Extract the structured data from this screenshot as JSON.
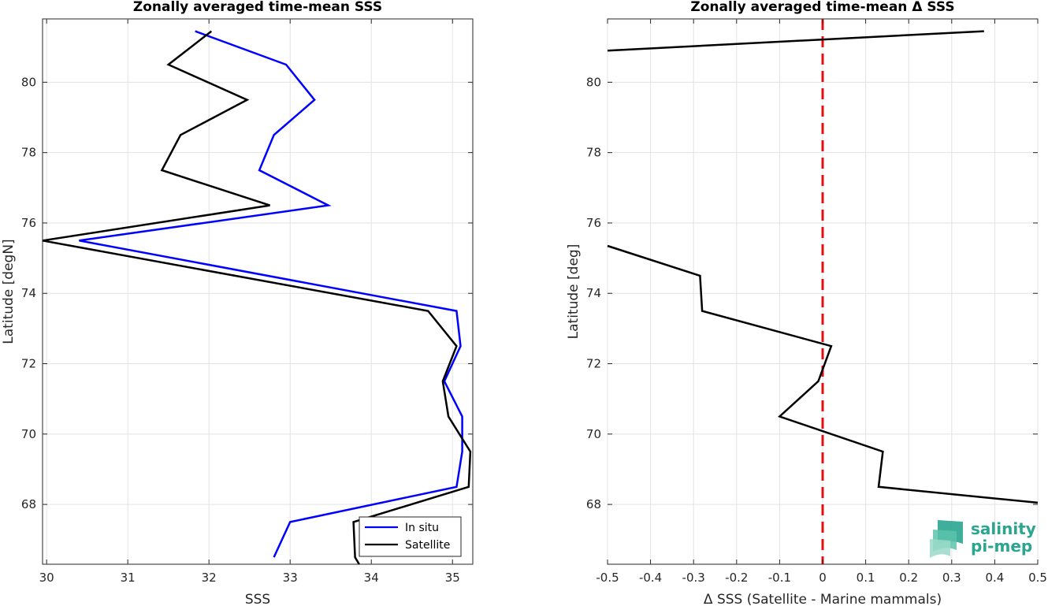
{
  "chart_data": [
    {
      "type": "line",
      "title": "Zonally averaged time-mean SSS",
      "xlabel": "SSS",
      "ylabel": "Latitude [degN]",
      "xlim": [
        29.95,
        35.25
      ],
      "ylim": [
        66.3,
        81.8
      ],
      "xticks": [
        "30",
        "31",
        "32",
        "33",
        "34",
        "35"
      ],
      "yticks": [
        "68",
        "70",
        "72",
        "74",
        "76",
        "78",
        "80"
      ],
      "grid": true,
      "legend_position": "bottom-right",
      "series": [
        {
          "name": "In situ",
          "color": "#0000ff",
          "x": [
            32.8,
            33.0,
            35.05,
            35.12,
            35.12,
            34.9,
            35.1,
            35.05,
            30.4,
            33.47,
            32.62,
            32.8,
            33.3,
            32.95,
            31.83
          ],
          "y": [
            66.5,
            67.5,
            68.5,
            69.5,
            70.5,
            71.5,
            72.5,
            73.5,
            75.5,
            76.5,
            77.5,
            78.5,
            79.5,
            80.5,
            81.45
          ]
        },
        {
          "name": "Satellite",
          "color": "#000000",
          "x": [
            33.85,
            33.8,
            33.78,
            35.2,
            35.22,
            34.95,
            34.88,
            35.05,
            34.7,
            29.95,
            32.75,
            31.42,
            31.65,
            32.47,
            31.5,
            32.03
          ],
          "y": [
            66.3,
            66.5,
            67.5,
            68.5,
            69.5,
            70.5,
            71.5,
            72.5,
            73.5,
            75.5,
            76.5,
            77.5,
            78.5,
            79.5,
            80.5,
            81.45
          ]
        }
      ]
    },
    {
      "type": "line",
      "title": "Zonally averaged time-mean Δ SSS",
      "xlabel": "Δ SSS (Satellite - Marine mammals)",
      "ylabel": "Latitude [deg]",
      "xlim": [
        -0.5,
        0.5
      ],
      "ylim": [
        66.3,
        81.8
      ],
      "xticks": [
        "-0.5",
        "-0.4",
        "-0.3",
        "-0.2",
        "-0.1",
        "0",
        "0.1",
        "0.2",
        "0.3",
        "0.4",
        "0.5"
      ],
      "yticks": [
        "68",
        "70",
        "72",
        "74",
        "76",
        "78",
        "80"
      ],
      "grid": true,
      "reference_line": {
        "x": 0,
        "color": "#e01010",
        "style": "dashed"
      },
      "series": [
        {
          "color": "#000000",
          "segments": [
            {
              "x": [
                0.5,
                0.13,
                0.14,
                -0.1,
                -0.01,
                0.02,
                -0.28,
                -0.285,
                -0.5
              ],
              "y": [
                68.05,
                68.5,
                69.5,
                70.5,
                71.5,
                72.5,
                73.5,
                74.5,
                75.35
              ]
            },
            {
              "x": [
                -0.5,
                0.375
              ],
              "y": [
                80.9,
                81.45
              ]
            }
          ]
        }
      ]
    }
  ],
  "logo": {
    "line1": "salinity",
    "line2": "pi-mep",
    "color": "#2aa58f"
  }
}
